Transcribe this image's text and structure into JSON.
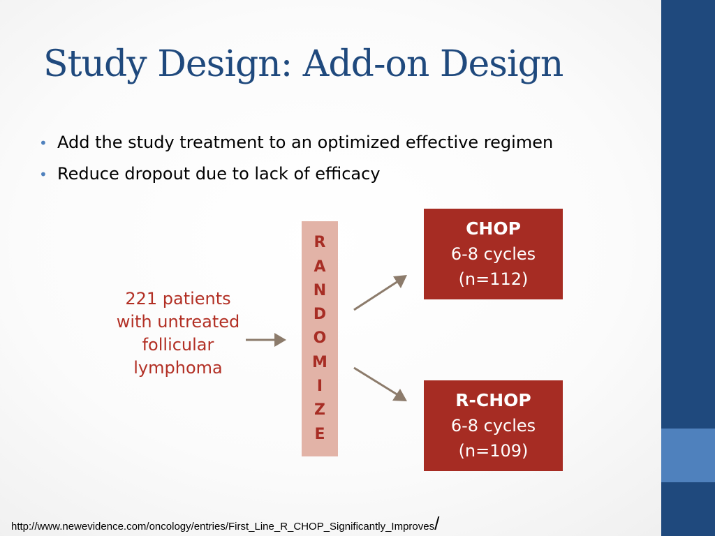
{
  "slide": {
    "title": "Study Design: Add-on Design",
    "bullets": [
      "Add the study treatment to an optimized effective regimen",
      "Reduce dropout due to lack of efficacy"
    ]
  },
  "diagram": {
    "population": [
      "221 patients",
      "with untreated",
      "follicular",
      "lymphoma"
    ],
    "randomize_letters": [
      "R",
      "A",
      "N",
      "D",
      "O",
      "M",
      "I",
      "Z",
      "E"
    ],
    "arms": [
      {
        "name": "CHOP",
        "cycles": "6-8 cycles",
        "n": "(n=112)"
      },
      {
        "name": "R-CHOP",
        "cycles": "6-8 cycles",
        "n": "(n=109)"
      }
    ]
  },
  "source": {
    "url": "http://www.newevidence.com/oncology/entries/First_Line_R_CHOP_Significantly_Improves",
    "trailing": "/"
  },
  "colors": {
    "title": "#1f497d",
    "sidebar": "#1f497d",
    "sidebar_accent": "#4f81bd",
    "arm_box": "#a62c23",
    "randomize_bar": "#e2b3a7",
    "arrow": "#8c7b6b"
  }
}
